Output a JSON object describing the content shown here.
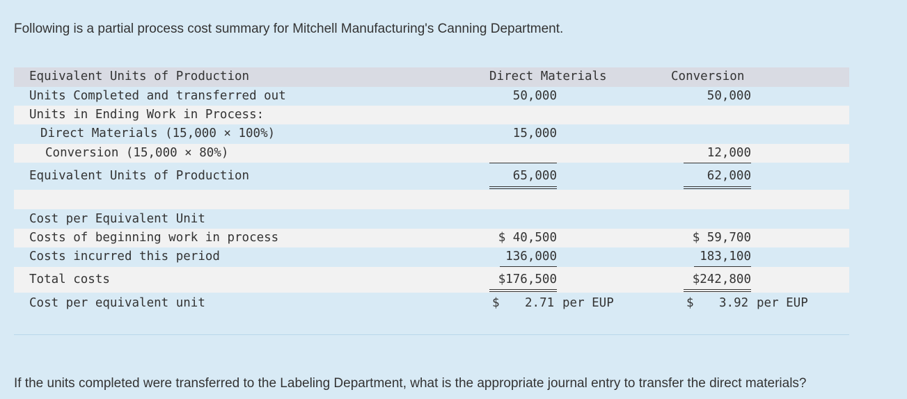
{
  "intro_text": "Following is a partial process cost summary for Mitchell Manufacturing's Canning Department.",
  "question_text": "If the units completed were transferred to the Labeling Department, what is the appropriate journal entry to transfer the direct materials?",
  "table": {
    "header": {
      "label": "Equivalent Units of Production",
      "col_dm": "Direct Materials",
      "col_conv": "Conversion"
    },
    "rows": [
      {
        "label": "Units Completed and transferred out",
        "dm": "50,000",
        "conv": "50,000"
      },
      {
        "label": "Units in Ending Work in Process:",
        "dm": "",
        "conv": ""
      },
      {
        "label": "Direct Materials (15,000 × 100%)",
        "dm": "15,000",
        "conv": ""
      },
      {
        "label": "Conversion (15,000 × 80%)",
        "dm": "",
        "conv": "12,000"
      },
      {
        "label": "Equivalent Units of Production",
        "dm": "65,000",
        "conv": "62,000"
      }
    ],
    "cost_rows": [
      {
        "label": "Cost per Equivalent Unit",
        "dm": "",
        "conv": ""
      },
      {
        "label": "Costs of beginning work in process",
        "dm": "$ 40,500",
        "conv": "$ 59,700"
      },
      {
        "label": "Costs incurred this period",
        "dm": "136,000",
        "conv": "183,100"
      },
      {
        "label": "Total costs",
        "dm": "$176,500",
        "conv": "$242,800"
      }
    ],
    "cpu_row": {
      "label": "Cost per equivalent unit",
      "dm_symbol": "$",
      "dm_value": "2.71",
      "dm_unit": "per EUP",
      "conv_symbol": "$",
      "conv_value": "3.92",
      "conv_unit": "per EUP"
    }
  }
}
